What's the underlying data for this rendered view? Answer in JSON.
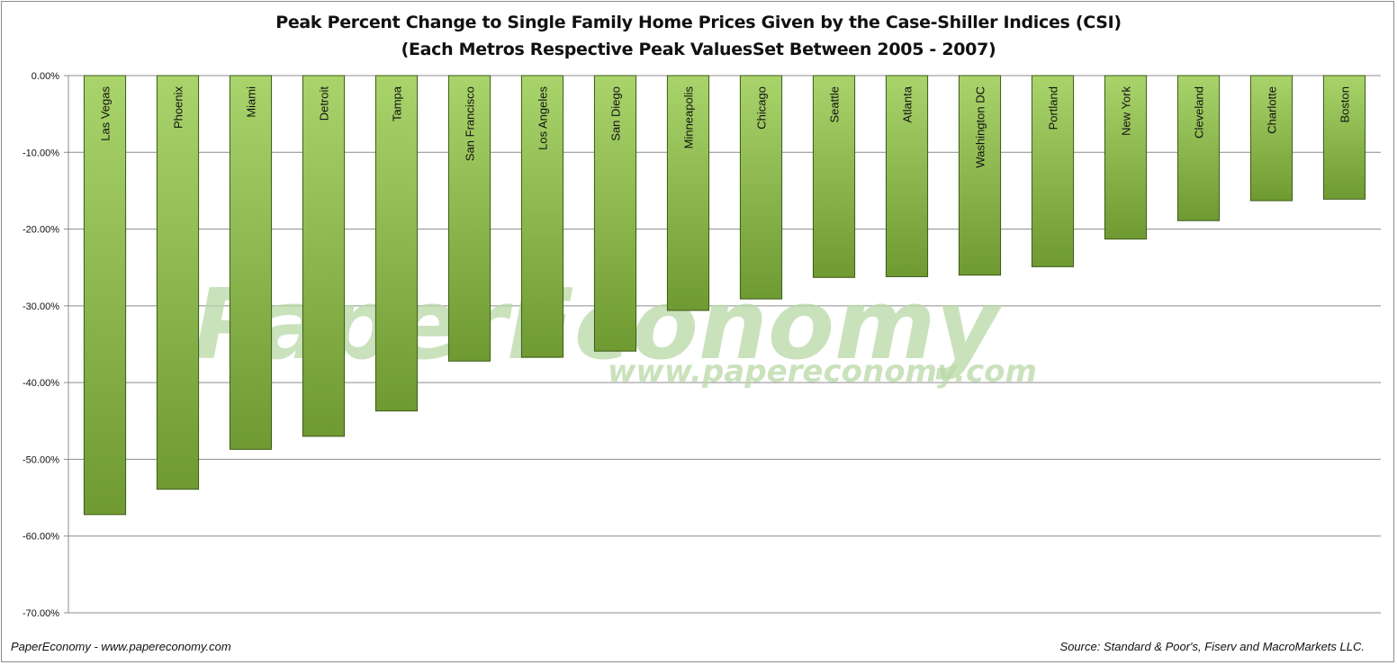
{
  "title_line1": "Peak Percent Change to Single Family Home Prices Given by the Case-Shiller Indices (CSI)",
  "title_line2": "(Each Metros Respective Peak ValuesSet Between 2005 - 2007)",
  "footer_left": "PaperEconomy - www.papereconomy.com",
  "footer_right": "Source: Standard & Poor's, Fiserv and MacroMarkets LLC.",
  "watermark_main": "PaperEconomy",
  "watermark_url": "www.papereconomy.com",
  "colors": {
    "bar_light": "#a9d46b",
    "bar_dark": "#6f9a32",
    "bar_border": "#3d5a18",
    "grid": "#8c8c8c"
  },
  "chart_data": {
    "type": "bar",
    "categories": [
      "Las Vegas",
      "Phoenix",
      "Miami",
      "Detroit",
      "Tampa",
      "San Francisco",
      "Los Angeles",
      "San Diego",
      "Minneapolis",
      "Chicago",
      "Seattle",
      "Atlanta",
      "Washington DC",
      "Portland",
      "New York",
      "Cleveland",
      "Charlotte",
      "Boston"
    ],
    "values": [
      -57.2,
      -53.9,
      -48.7,
      -47.0,
      -43.7,
      -37.2,
      -36.7,
      -35.9,
      -30.6,
      -29.1,
      -26.3,
      -26.2,
      -26.0,
      -24.9,
      -21.3,
      -18.9,
      -16.3,
      -16.1
    ],
    "ylim": [
      -70,
      0
    ],
    "yticks": [
      "0.00%",
      "-10.00%",
      "-20.00%",
      "-30.00%",
      "-40.00%",
      "-50.00%",
      "-60.00%",
      "-70.00%"
    ],
    "ytick_values": [
      0,
      -10,
      -20,
      -30,
      -40,
      -50,
      -60,
      -70
    ],
    "grid": true,
    "legend": "none"
  }
}
